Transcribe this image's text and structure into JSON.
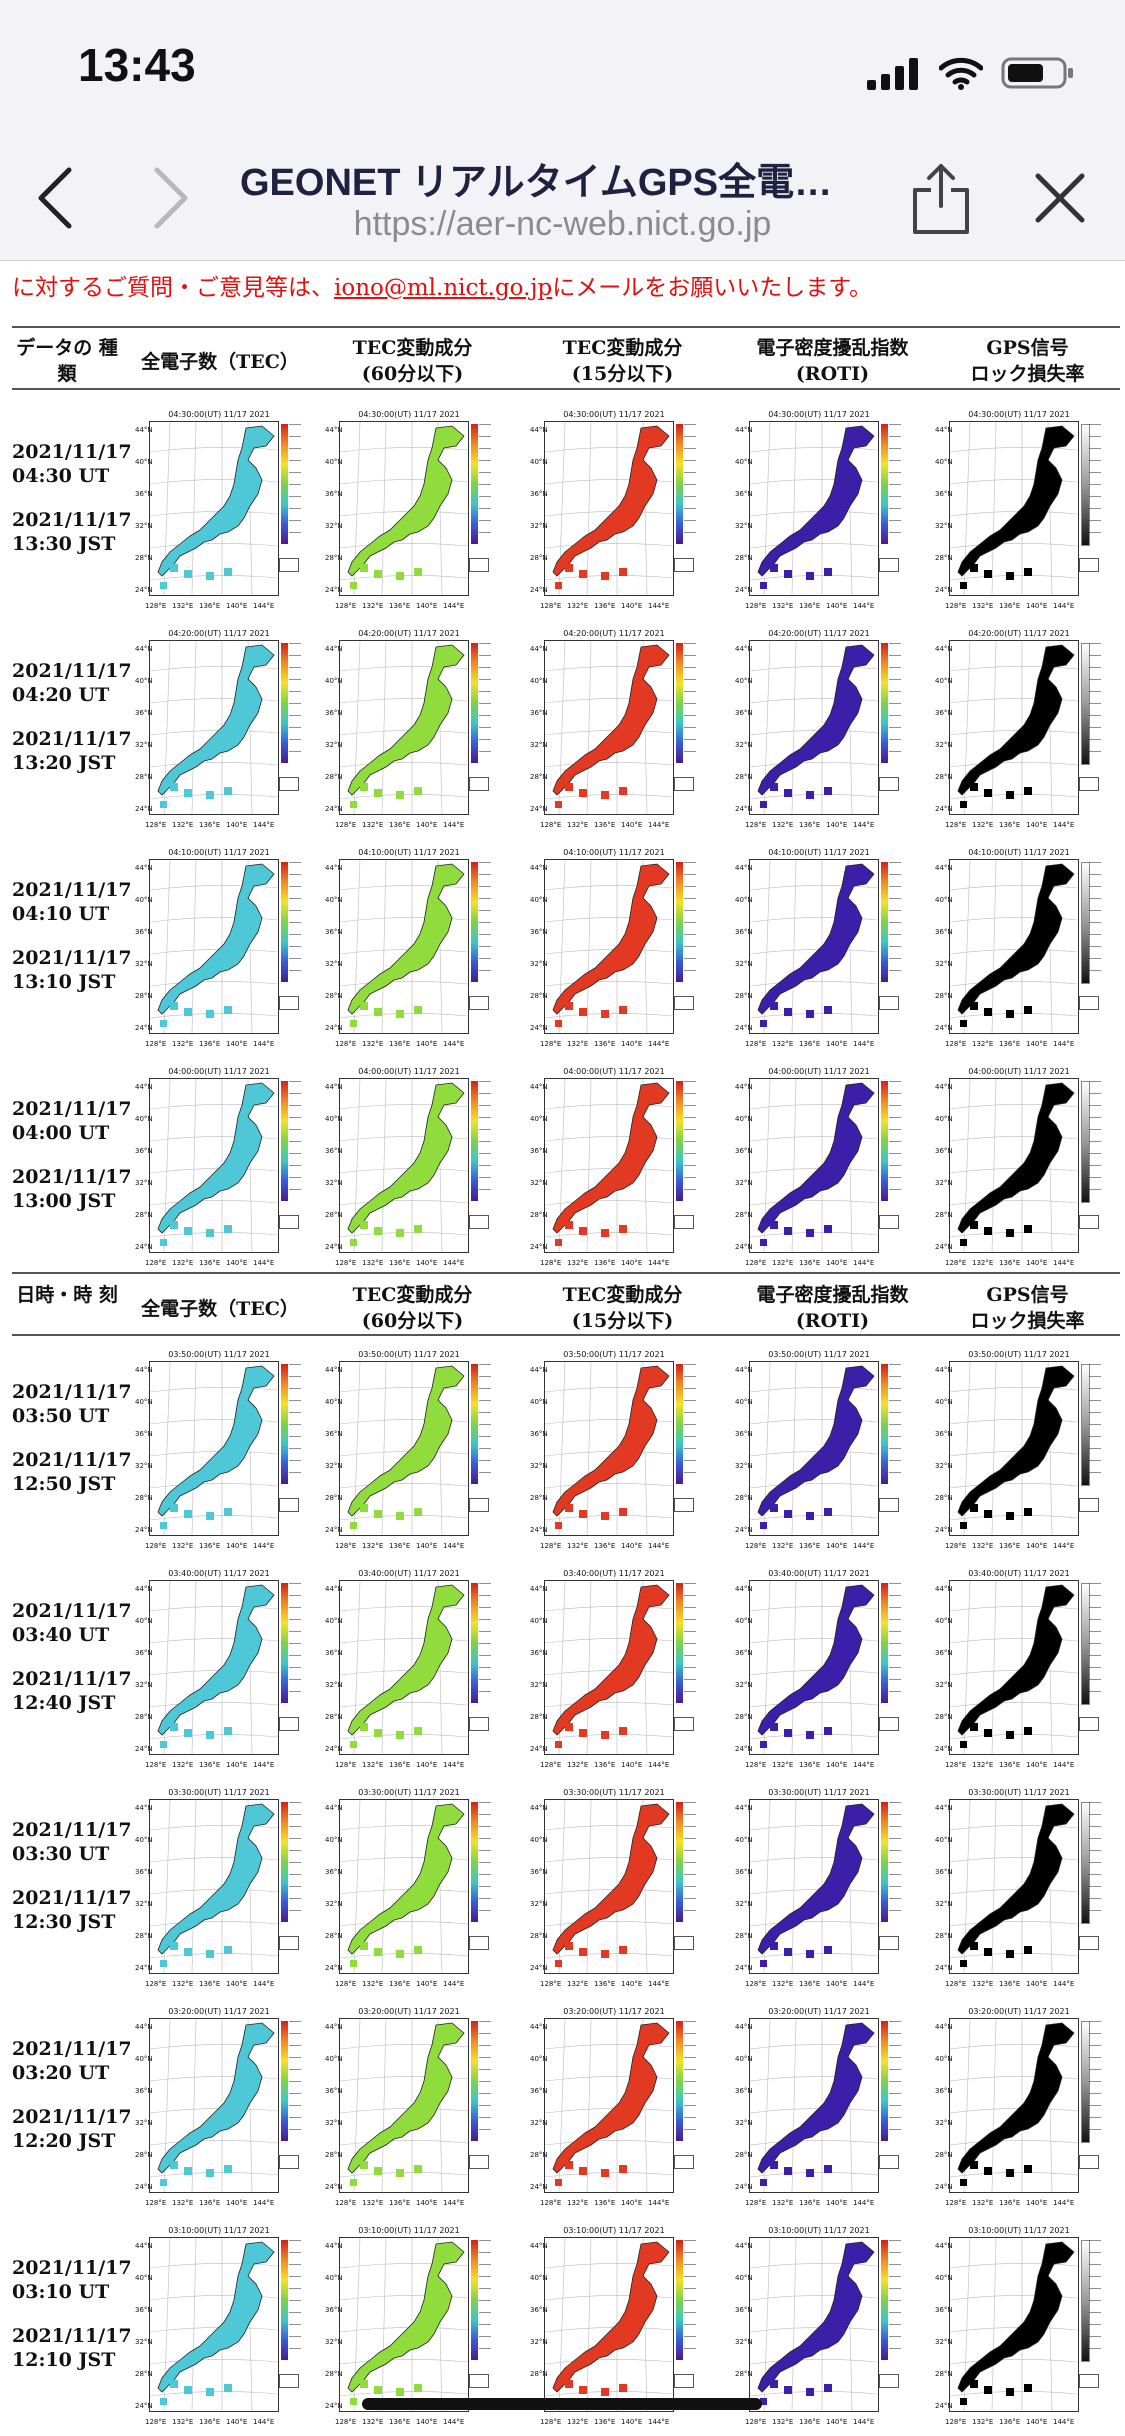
{
  "status_bar": {
    "time": "13:43"
  },
  "browser": {
    "title": "GEONET リアルタイムGPS全電…",
    "url": "https://aer-nc-web.nict.go.jp"
  },
  "notice": {
    "prefix": "に対するご質問・ご意見等は、",
    "email": "iono@ml.nict.go.jp",
    "suffix": "にメールをお願いいたします。"
  },
  "headers_top": {
    "c0": "データの 種類",
    "c1": "全電子数（TEC）",
    "c2a": "TEC変動成分",
    "c2b": "(60分以下)",
    "c3a": "TEC変動成分",
    "c3b": "(15分以下)",
    "c4a": "電子密度擾乱指数",
    "c4b": "(ROTI)",
    "c5a": "GPS信号",
    "c5b": "ロック損失率"
  },
  "headers_mid": {
    "c0": "日時・時 刻",
    "c1": "全電子数（TEC）",
    "c2a": "TEC変動成分",
    "c2b": "(60分以下)",
    "c3a": "TEC変動成分",
    "c3b": "(15分以下)",
    "c4a": "電子密度擾乱指数",
    "c4b": "(ROTI)",
    "c5a": "GPS信号",
    "c5b": "ロック損失率"
  },
  "rows": [
    {
      "utc": "2021/11/17 04:30 UT",
      "jst": "2021/11/17 13:30 JST",
      "map_title": "04:30:00(UT) 11/17 2021"
    },
    {
      "utc": "2021/11/17 04:20 UT",
      "jst": "2021/11/17 13:20 JST",
      "map_title": "04:20:00(UT) 11/17 2021"
    },
    {
      "utc": "2021/11/17 04:10 UT",
      "jst": "2021/11/17 13:10 JST",
      "map_title": "04:10:00(UT) 11/17 2021"
    },
    {
      "utc": "2021/11/17 04:00 UT",
      "jst": "2021/11/17 13:00 JST",
      "map_title": "04:00:00(UT) 11/17 2021"
    },
    {
      "utc": "2021/11/17 03:50 UT",
      "jst": "2021/11/17 12:50 JST",
      "map_title": "03:50:00(UT) 11/17 2021"
    },
    {
      "utc": "2021/11/17 03:40 UT",
      "jst": "2021/11/17 12:40 JST",
      "map_title": "03:40:00(UT) 11/17 2021"
    },
    {
      "utc": "2021/11/17 03:30 UT",
      "jst": "2021/11/17 12:30 JST",
      "map_title": "03:30:00(UT) 11/17 2021"
    },
    {
      "utc": "2021/11/17 03:20 UT",
      "jst": "2021/11/17 12:20 JST",
      "map_title": "03:20:00(UT) 11/17 2021"
    },
    {
      "utc": "2021/11/17 03:10 UT",
      "jst": "2021/11/17 12:10 JST",
      "map_title": "03:10:00(UT) 11/17 2021"
    }
  ],
  "map_axes": {
    "lat": [
      "44°N",
      "40°N",
      "36°N",
      "32°N",
      "28°N",
      "24°N"
    ],
    "lon": [
      "128°E",
      "132°E",
      "136°E",
      "140°E",
      "144°E"
    ]
  },
  "map_types": [
    {
      "name": "tec",
      "color": "#4ec8d6",
      "colorbar": "rainbow"
    },
    {
      "name": "tec-60min",
      "color": "#8fdc3c",
      "colorbar": "rainbow"
    },
    {
      "name": "tec-15min",
      "color": "#e23a22",
      "colorbar": "rainbow"
    },
    {
      "name": "roti",
      "color": "#3c1fa8",
      "colorbar": "rainbow"
    },
    {
      "name": "lock-loss",
      "color": "#000000",
      "colorbar": "gray"
    }
  ]
}
